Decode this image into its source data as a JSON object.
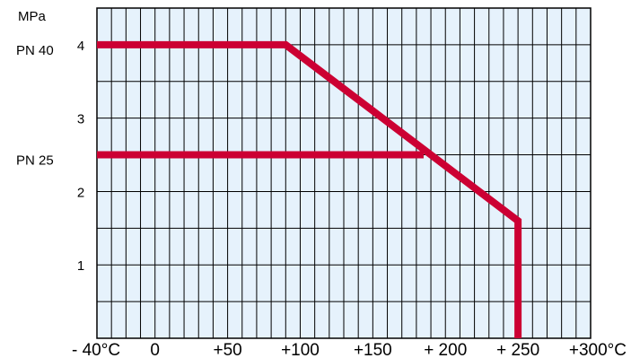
{
  "chart_data": {
    "type": "line",
    "title": "",
    "xlabel": "",
    "ylabel": "MPa",
    "xlim": [
      -40,
      300
    ],
    "ylim": [
      0,
      4.5
    ],
    "grid": true,
    "x_ticks": [
      -40,
      0,
      50,
      100,
      150,
      200,
      250,
      300
    ],
    "x_tick_labels": [
      "- 40°C",
      "0",
      "+50",
      "+100",
      "+150",
      "+ 200",
      "+ 250",
      "+300°C"
    ],
    "y_ticks": [
      1,
      2,
      3,
      4
    ],
    "y_tick_labels": [
      "1",
      "2",
      "3",
      "4"
    ],
    "pn_labels": [
      {
        "text": "PN 40",
        "y": 4.0
      },
      {
        "text": "PN 25",
        "y": 2.5
      }
    ],
    "series": [
      {
        "name": "PN 40",
        "color": "#cc0033",
        "x": [
          -40,
          90,
          250,
          250
        ],
        "y": [
          4.0,
          4.0,
          1.6,
          0
        ]
      },
      {
        "name": "PN 25",
        "color": "#cc0033",
        "x": [
          -40,
          185
        ],
        "y": [
          2.5,
          2.5
        ]
      }
    ],
    "colors": {
      "plot_background": "#e6f2fc",
      "grid": "#000000",
      "line": "#cc0033"
    }
  }
}
